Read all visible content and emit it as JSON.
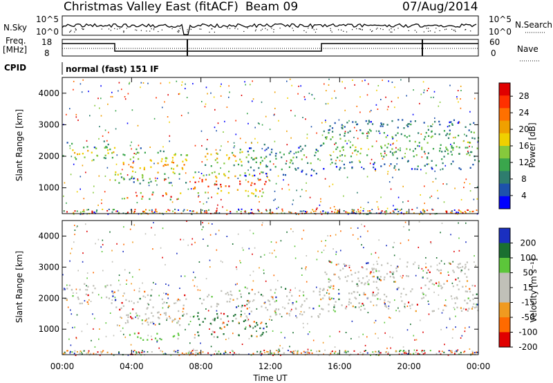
{
  "header": {
    "title": "Christmas Valley East (fitACF)",
    "beam": "Beam 09",
    "date": "07/Aug/2014"
  },
  "params": {
    "nsky_label": "N.Sky",
    "nsky_ticks": [
      "10^5",
      "10^0"
    ],
    "nsearch_label": "N.Search",
    "nsearch_ticks": [
      "10^5",
      "10^0"
    ],
    "freq_label_1": "Freq.",
    "freq_label_2": "[MHz]",
    "freq_ticks": [
      "18",
      "8"
    ],
    "nave_label": "Nave",
    "nave_ticks": [
      "60",
      "0"
    ],
    "cpid_label": "CPID",
    "cpid_text": "normal (fast) 151 IF"
  },
  "chart_data": [
    {
      "type": "heatmap",
      "name": "power",
      "ylabel": "Slant Range [km]",
      "y_ticks": [
        "4000",
        "3000",
        "2000",
        "1000"
      ],
      "ylim": [
        180,
        4500
      ],
      "colorbar_label": "Power [dB]",
      "colorbar_ticks": [
        "28",
        "24",
        "20",
        "16",
        "12",
        "8",
        "4"
      ],
      "colors": [
        "#0000ff",
        "#1d52ac",
        "#2e7d6e",
        "#3aa64c",
        "#86c93c",
        "#f0d000",
        "#f0a000",
        "#ff7000",
        "#ff3000",
        "#e00000"
      ],
      "echo_regions": [
        {
          "t0": 0.0,
          "t1": 3.0,
          "r0": 1850,
          "r1": 2500,
          "level": 0.55
        },
        {
          "t0": 3.0,
          "t1": 7.2,
          "r0": 1150,
          "r1": 2300,
          "level": 0.6
        },
        {
          "t0": 3.5,
          "t1": 7.0,
          "r0": 650,
          "r1": 900,
          "level": 0.9
        },
        {
          "t0": 7.5,
          "t1": 11.8,
          "r0": 750,
          "r1": 1550,
          "level": 0.85
        },
        {
          "t0": 8.0,
          "t1": 10.5,
          "r0": 1700,
          "r1": 2300,
          "level": 0.6
        },
        {
          "t0": 10.5,
          "t1": 15.0,
          "r0": 1400,
          "r1": 2400,
          "level": 0.35
        },
        {
          "t0": 15.0,
          "t1": 24.0,
          "r0": 1600,
          "r1": 3200,
          "level": 0.4
        }
      ]
    },
    {
      "type": "heatmap",
      "name": "velocity",
      "ylabel": "Slant Range [km]",
      "y_ticks": [
        "4000",
        "3000",
        "2000",
        "1000"
      ],
      "ylim": [
        180,
        4500
      ],
      "colorbar_label": "Velocity [m s⁻¹]",
      "colorbar_ticks": [
        "200",
        "100",
        "50",
        "15",
        "-15",
        "-50",
        "-100",
        "-200"
      ],
      "colors": [
        "#1a2fc0",
        "#1a7030",
        "#5cc63a",
        "#c0c0b8",
        "#c0c0b8",
        "#f09a20",
        "#ff6a00",
        "#e00000"
      ],
      "xlabel": "Time UT",
      "x_ticks": [
        "00:00",
        "04:00",
        "08:00",
        "12:00",
        "16:00",
        "20:00",
        "00:00"
      ],
      "echo_regions": [
        {
          "t0": 0.0,
          "t1": 3.0,
          "r0": 1850,
          "r1": 2500,
          "level": 0.5
        },
        {
          "t0": 3.0,
          "t1": 7.2,
          "r0": 1150,
          "r1": 2300,
          "level": 0.5
        },
        {
          "t0": 3.5,
          "t1": 7.0,
          "r0": 650,
          "r1": 900,
          "level": 0.7
        },
        {
          "t0": 7.5,
          "t1": 11.8,
          "r0": 750,
          "r1": 1550,
          "level": 0.75
        },
        {
          "t0": 8.0,
          "t1": 10.5,
          "r0": 1700,
          "r1": 2300,
          "level": 0.4
        },
        {
          "t0": 10.5,
          "t1": 15.0,
          "r0": 1400,
          "r1": 2400,
          "level": 0.5
        },
        {
          "t0": 15.0,
          "t1": 24.0,
          "r0": 1600,
          "r1": 3200,
          "level": 0.45
        }
      ]
    }
  ]
}
